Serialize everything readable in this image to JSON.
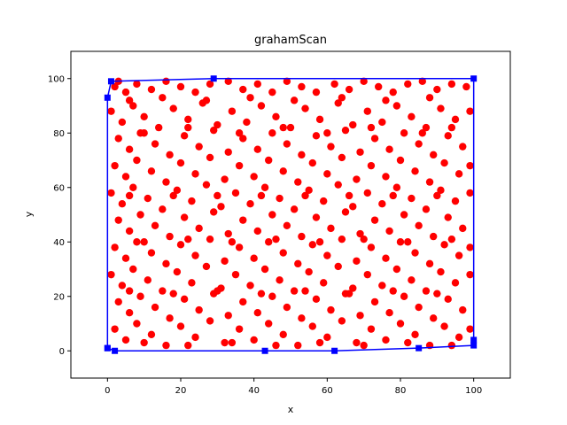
{
  "chart_data": {
    "type": "scatter",
    "title": "grahamScan",
    "xlabel": "x",
    "ylabel": "y",
    "xlim": [
      -10,
      110
    ],
    "ylim": [
      -10,
      110
    ],
    "x_ticks": [
      0,
      20,
      40,
      60,
      80,
      100
    ],
    "y_ticks": [
      0,
      20,
      40,
      60,
      80,
      100
    ],
    "grid": false,
    "legend": "none",
    "colors": {
      "points": "#ff0000",
      "hull": "#0000ff"
    },
    "series": [
      {
        "type": "scatter",
        "marker": "circle",
        "color": "#ff0000",
        "count_note": "approx. 1000 random points in [0,100]x[0,100]",
        "points": [
          [
            2,
            97
          ],
          [
            3,
            99
          ],
          [
            5,
            95
          ],
          [
            8,
            98
          ],
          [
            12,
            96
          ],
          [
            16,
            99
          ],
          [
            20,
            97
          ],
          [
            24,
            95
          ],
          [
            28,
            98
          ],
          [
            33,
            99
          ],
          [
            37,
            96
          ],
          [
            41,
            98
          ],
          [
            45,
            95
          ],
          [
            49,
            99
          ],
          [
            53,
            97
          ],
          [
            57,
            95
          ],
          [
            62,
            98
          ],
          [
            66,
            96
          ],
          [
            70,
            99
          ],
          [
            74,
            97
          ],
          [
            78,
            95
          ],
          [
            82,
            98
          ],
          [
            86,
            99
          ],
          [
            90,
            96
          ],
          [
            94,
            98
          ],
          [
            98,
            97
          ],
          [
            1,
            88
          ],
          [
            4,
            84
          ],
          [
            7,
            90
          ],
          [
            10,
            86
          ],
          [
            14,
            82
          ],
          [
            18,
            89
          ],
          [
            22,
            85
          ],
          [
            26,
            91
          ],
          [
            30,
            83
          ],
          [
            34,
            88
          ],
          [
            38,
            84
          ],
          [
            42,
            90
          ],
          [
            46,
            86
          ],
          [
            50,
            82
          ],
          [
            54,
            89
          ],
          [
            58,
            85
          ],
          [
            63,
            91
          ],
          [
            67,
            83
          ],
          [
            71,
            88
          ],
          [
            75,
            84
          ],
          [
            79,
            90
          ],
          [
            83,
            86
          ],
          [
            87,
            82
          ],
          [
            91,
            89
          ],
          [
            95,
            85
          ],
          [
            99,
            88
          ],
          [
            3,
            78
          ],
          [
            6,
            74
          ],
          [
            9,
            80
          ],
          [
            13,
            76
          ],
          [
            17,
            72
          ],
          [
            21,
            79
          ],
          [
            25,
            75
          ],
          [
            29,
            81
          ],
          [
            33,
            73
          ],
          [
            37,
            78
          ],
          [
            41,
            74
          ],
          [
            45,
            80
          ],
          [
            49,
            76
          ],
          [
            53,
            72
          ],
          [
            57,
            79
          ],
          [
            61,
            75
          ],
          [
            65,
            81
          ],
          [
            69,
            73
          ],
          [
            73,
            78
          ],
          [
            77,
            74
          ],
          [
            81,
            80
          ],
          [
            85,
            76
          ],
          [
            89,
            72
          ],
          [
            93,
            79
          ],
          [
            97,
            75
          ],
          [
            2,
            68
          ],
          [
            5,
            64
          ],
          [
            8,
            70
          ],
          [
            12,
            66
          ],
          [
            16,
            62
          ],
          [
            20,
            69
          ],
          [
            24,
            65
          ],
          [
            28,
            71
          ],
          [
            32,
            63
          ],
          [
            36,
            68
          ],
          [
            40,
            64
          ],
          [
            44,
            70
          ],
          [
            48,
            66
          ],
          [
            52,
            62
          ],
          [
            56,
            69
          ],
          [
            60,
            65
          ],
          [
            64,
            71
          ],
          [
            68,
            63
          ],
          [
            72,
            68
          ],
          [
            76,
            64
          ],
          [
            80,
            70
          ],
          [
            84,
            66
          ],
          [
            88,
            62
          ],
          [
            92,
            69
          ],
          [
            96,
            65
          ],
          [
            99,
            68
          ],
          [
            1,
            58
          ],
          [
            4,
            54
          ],
          [
            7,
            60
          ],
          [
            11,
            56
          ],
          [
            15,
            52
          ],
          [
            19,
            59
          ],
          [
            23,
            55
          ],
          [
            27,
            61
          ],
          [
            31,
            53
          ],
          [
            35,
            58
          ],
          [
            39,
            54
          ],
          [
            43,
            60
          ],
          [
            47,
            56
          ],
          [
            51,
            52
          ],
          [
            55,
            59
          ],
          [
            59,
            55
          ],
          [
            63,
            61
          ],
          [
            67,
            53
          ],
          [
            71,
            58
          ],
          [
            75,
            54
          ],
          [
            79,
            60
          ],
          [
            83,
            56
          ],
          [
            87,
            52
          ],
          [
            91,
            59
          ],
          [
            95,
            55
          ],
          [
            99,
            58
          ],
          [
            3,
            48
          ],
          [
            6,
            44
          ],
          [
            9,
            50
          ],
          [
            13,
            46
          ],
          [
            17,
            42
          ],
          [
            21,
            49
          ],
          [
            25,
            45
          ],
          [
            29,
            51
          ],
          [
            33,
            43
          ],
          [
            37,
            48
          ],
          [
            41,
            44
          ],
          [
            45,
            50
          ],
          [
            49,
            46
          ],
          [
            53,
            42
          ],
          [
            57,
            49
          ],
          [
            61,
            45
          ],
          [
            65,
            51
          ],
          [
            69,
            43
          ],
          [
            73,
            48
          ],
          [
            77,
            44
          ],
          [
            81,
            50
          ],
          [
            85,
            46
          ],
          [
            89,
            42
          ],
          [
            93,
            49
          ],
          [
            97,
            45
          ],
          [
            2,
            38
          ],
          [
            5,
            34
          ],
          [
            8,
            40
          ],
          [
            12,
            36
          ],
          [
            16,
            32
          ],
          [
            20,
            39
          ],
          [
            24,
            35
          ],
          [
            28,
            41
          ],
          [
            32,
            33
          ],
          [
            36,
            38
          ],
          [
            40,
            34
          ],
          [
            44,
            40
          ],
          [
            48,
            36
          ],
          [
            52,
            32
          ],
          [
            56,
            39
          ],
          [
            60,
            35
          ],
          [
            64,
            41
          ],
          [
            68,
            33
          ],
          [
            72,
            38
          ],
          [
            76,
            34
          ],
          [
            80,
            40
          ],
          [
            84,
            36
          ],
          [
            88,
            32
          ],
          [
            92,
            39
          ],
          [
            96,
            35
          ],
          [
            99,
            38
          ],
          [
            1,
            28
          ],
          [
            4,
            24
          ],
          [
            7,
            30
          ],
          [
            11,
            26
          ],
          [
            15,
            22
          ],
          [
            19,
            29
          ],
          [
            23,
            25
          ],
          [
            27,
            31
          ],
          [
            31,
            23
          ],
          [
            35,
            28
          ],
          [
            39,
            24
          ],
          [
            43,
            30
          ],
          [
            47,
            26
          ],
          [
            51,
            22
          ],
          [
            55,
            29
          ],
          [
            59,
            25
          ],
          [
            63,
            31
          ],
          [
            67,
            23
          ],
          [
            71,
            28
          ],
          [
            75,
            24
          ],
          [
            79,
            30
          ],
          [
            83,
            26
          ],
          [
            87,
            22
          ],
          [
            91,
            29
          ],
          [
            95,
            25
          ],
          [
            99,
            28
          ],
          [
            3,
            18
          ],
          [
            6,
            14
          ],
          [
            9,
            20
          ],
          [
            13,
            16
          ],
          [
            17,
            12
          ],
          [
            21,
            19
          ],
          [
            25,
            15
          ],
          [
            29,
            21
          ],
          [
            33,
            13
          ],
          [
            37,
            18
          ],
          [
            41,
            14
          ],
          [
            45,
            20
          ],
          [
            49,
            16
          ],
          [
            53,
            12
          ],
          [
            57,
            19
          ],
          [
            61,
            15
          ],
          [
            65,
            21
          ],
          [
            69,
            13
          ],
          [
            73,
            18
          ],
          [
            77,
            14
          ],
          [
            81,
            20
          ],
          [
            85,
            16
          ],
          [
            89,
            12
          ],
          [
            93,
            19
          ],
          [
            97,
            15
          ],
          [
            2,
            8
          ],
          [
            5,
            4
          ],
          [
            8,
            10
          ],
          [
            12,
            6
          ],
          [
            16,
            2
          ],
          [
            20,
            9
          ],
          [
            24,
            5
          ],
          [
            28,
            11
          ],
          [
            32,
            3
          ],
          [
            36,
            8
          ],
          [
            40,
            4
          ],
          [
            44,
            10
          ],
          [
            48,
            6
          ],
          [
            52,
            2
          ],
          [
            56,
            9
          ],
          [
            60,
            5
          ],
          [
            64,
            11
          ],
          [
            68,
            3
          ],
          [
            72,
            8
          ],
          [
            76,
            4
          ],
          [
            80,
            10
          ],
          [
            84,
            6
          ],
          [
            88,
            2
          ],
          [
            92,
            9
          ],
          [
            96,
            5
          ],
          [
            99,
            8
          ],
          [
            6,
            92
          ],
          [
            15,
            93
          ],
          [
            27,
            92
          ],
          [
            39,
            93
          ],
          [
            51,
            92
          ],
          [
            64,
            93
          ],
          [
            76,
            92
          ],
          [
            88,
            93
          ],
          [
            10,
            80
          ],
          [
            22,
            82
          ],
          [
            36,
            80
          ],
          [
            48,
            82
          ],
          [
            60,
            80
          ],
          [
            72,
            82
          ],
          [
            86,
            80
          ],
          [
            94,
            82
          ],
          [
            6,
            57
          ],
          [
            18,
            57
          ],
          [
            30,
            57
          ],
          [
            42,
            57
          ],
          [
            54,
            57
          ],
          [
            66,
            57
          ],
          [
            78,
            57
          ],
          [
            90,
            57
          ],
          [
            10,
            40
          ],
          [
            22,
            41
          ],
          [
            34,
            40
          ],
          [
            46,
            41
          ],
          [
            58,
            40
          ],
          [
            70,
            41
          ],
          [
            82,
            40
          ],
          [
            94,
            41
          ],
          [
            6,
            22
          ],
          [
            18,
            21
          ],
          [
            30,
            22
          ],
          [
            42,
            21
          ],
          [
            54,
            22
          ],
          [
            66,
            21
          ],
          [
            78,
            22
          ],
          [
            90,
            21
          ],
          [
            10,
            3
          ],
          [
            22,
            2
          ],
          [
            34,
            3
          ],
          [
            46,
            2
          ],
          [
            58,
            3
          ],
          [
            70,
            2
          ],
          [
            82,
            3
          ],
          [
            94,
            2
          ]
        ]
      },
      {
        "type": "line",
        "name": "",
        "marker": "square",
        "color": "#0000ff",
        "points": [
          [
            0,
            1
          ],
          [
            2,
            0
          ],
          [
            43,
            0
          ],
          [
            62,
            0
          ],
          [
            85,
            1
          ],
          [
            100,
            2
          ],
          [
            100,
            4
          ],
          [
            100,
            100
          ],
          [
            29,
            100
          ],
          [
            1,
            99
          ],
          [
            0,
            93
          ],
          [
            0,
            1
          ]
        ]
      }
    ]
  }
}
